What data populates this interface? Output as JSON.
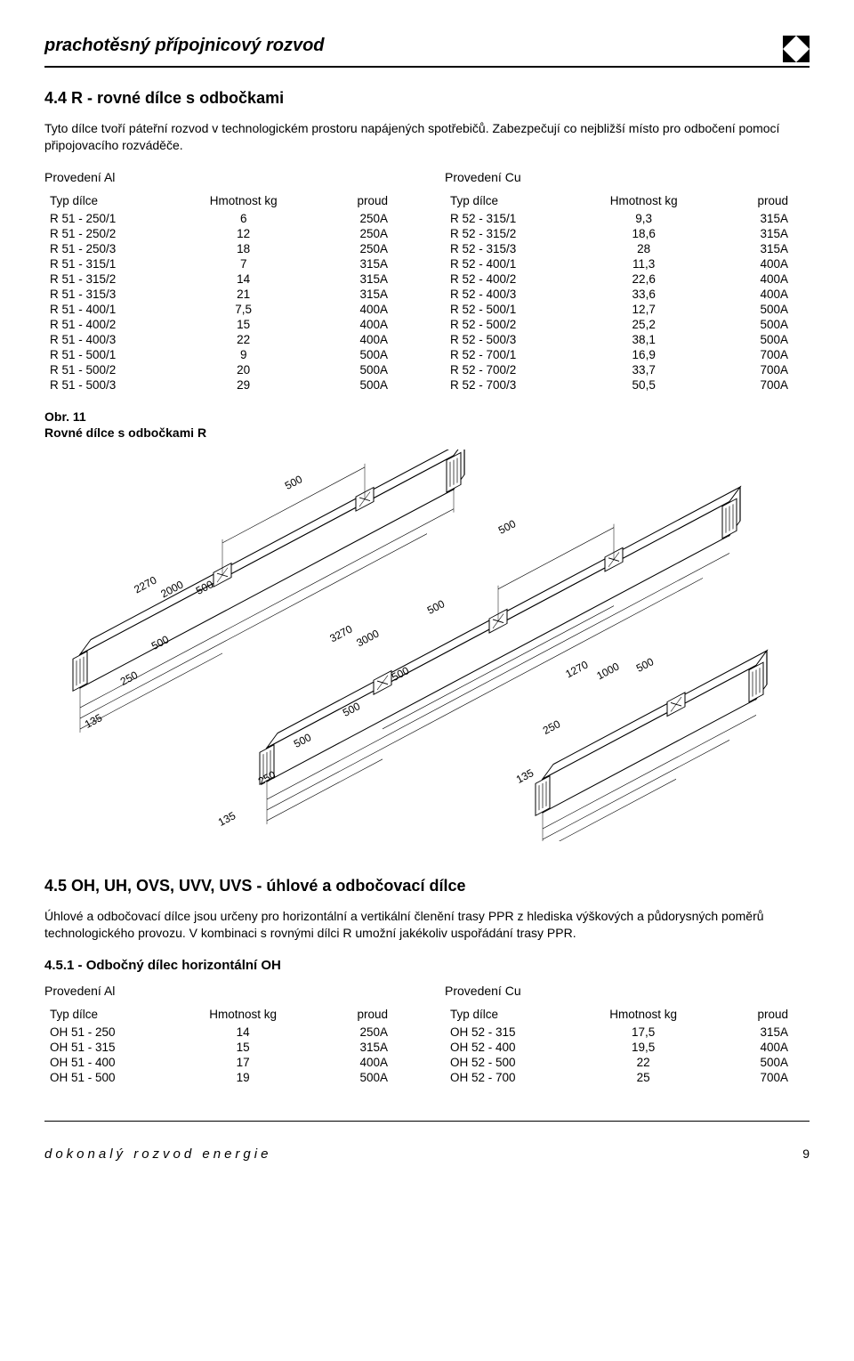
{
  "header": {
    "main_title": "prachotěsný přípojnicový rozvod"
  },
  "section1": {
    "title": "4.4 R - rovné dílce s odbočkami",
    "intro": "Tyto dílce tvoří páteřní rozvod v technologickém prostoru napájených spotřebičů. Zabezpečují co nejbližší místo pro odbočení pomocí připojovacího rozváděče.",
    "left_head": "Provedení Al",
    "right_head": "Provedení Cu",
    "th_type": "Typ dílce",
    "th_weight": "Hmotnost kg",
    "th_current": "proud",
    "rows_left": [
      [
        "R 51 - 250/1",
        "6",
        "250A"
      ],
      [
        "R 51 - 250/2",
        "12",
        "250A"
      ],
      [
        "R 51 - 250/3",
        "18",
        "250A"
      ],
      [
        "R 51 - 315/1",
        "7",
        "315A"
      ],
      [
        "R 51 - 315/2",
        "14",
        "315A"
      ],
      [
        "R 51 - 315/3",
        "21",
        "315A"
      ],
      [
        "R 51 - 400/1",
        "7,5",
        "400A"
      ],
      [
        "R 51 - 400/2",
        "15",
        "400A"
      ],
      [
        "R 51 - 400/3",
        "22",
        "400A"
      ],
      [
        "R 51 - 500/1",
        "9",
        "500A"
      ],
      [
        "R 51 - 500/2",
        "20",
        "500A"
      ],
      [
        "R 51 - 500/3",
        "29",
        "500A"
      ]
    ],
    "rows_right": [
      [
        "R 52 - 315/1",
        "9,3",
        "315A"
      ],
      [
        "R 52 - 315/2",
        "18,6",
        "315A"
      ],
      [
        "R 52 - 315/3",
        "28",
        "315A"
      ],
      [
        "R 52 - 400/1",
        "11,3",
        "400A"
      ],
      [
        "R 52 - 400/2",
        "22,6",
        "400A"
      ],
      [
        "R 52 - 400/3",
        "33,6",
        "400A"
      ],
      [
        "R 52 - 500/1",
        "12,7",
        "500A"
      ],
      [
        "R 52 - 500/2",
        "25,2",
        "500A"
      ],
      [
        "R 52 - 500/3",
        "38,1",
        "500A"
      ],
      [
        "R 52 - 700/1",
        "16,9",
        "700A"
      ],
      [
        "R 52 - 700/2",
        "33,7",
        "700A"
      ],
      [
        "R 52 - 700/3",
        "50,5",
        "700A"
      ]
    ]
  },
  "figure": {
    "caption_line1": "Obr. 11",
    "caption_line2": "Rovné dílce s odbočkami R",
    "piece1": {
      "dims_top": [
        "500"
      ],
      "dims_side": [
        "2270",
        "2000",
        "500"
      ],
      "dims_mid": [
        "500"
      ],
      "dims_bot": [
        "250",
        "135"
      ]
    },
    "piece2": {
      "dims_top": [
        "500"
      ],
      "dims_side": [
        "3270",
        "3000",
        "500"
      ],
      "dims_mid": [
        "500",
        "500",
        "500"
      ],
      "dims_bot": [
        "250",
        "135"
      ]
    },
    "piece3": {
      "dims_side": [
        "1270",
        "1000",
        "500"
      ],
      "dims_bot": [
        "250",
        "135"
      ]
    },
    "line_color": "#000000",
    "fill_color": "#ffffff"
  },
  "section2": {
    "title": "4.5 OH, UH, OVS, UVV, UVS - úhlové a odbočovací dílce",
    "intro": "Úhlové a odbočovací dílce jsou určeny pro horizontální a vertikální členění trasy PPR z hlediska výškových a půdorysných poměrů technologického provozu. V kombinaci s rovnými dílci R umožní jakékoliv uspořádání trasy PPR.",
    "sub_title": "4.5.1 - Odbočný dílec horizontální OH",
    "left_head": "Provedení Al",
    "right_head": "Provedení Cu",
    "th_type": "Typ dílce",
    "th_weight": "Hmotnost kg",
    "th_current": "proud",
    "rows_left": [
      [
        "OH 51 - 250",
        "14",
        "250A"
      ],
      [
        "OH 51 - 315",
        "15",
        "315A"
      ],
      [
        "OH 51 - 400",
        "17",
        "400A"
      ],
      [
        "OH 51 - 500",
        "19",
        "500A"
      ]
    ],
    "rows_right": [
      [
        "OH 52 - 315",
        "17,5",
        "315A"
      ],
      [
        "OH 52 - 400",
        "19,5",
        "400A"
      ],
      [
        "OH 52 - 500",
        "22",
        "500A"
      ],
      [
        "OH 52 - 700",
        "25",
        "700A"
      ]
    ]
  },
  "footer": {
    "text": "dokonalý rozvod energie",
    "page": "9"
  }
}
